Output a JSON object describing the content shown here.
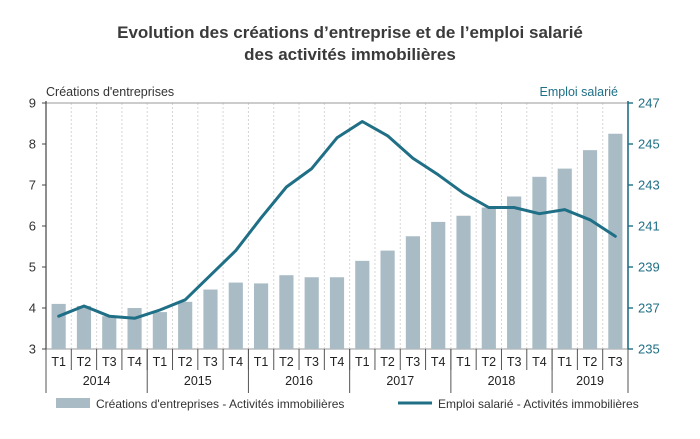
{
  "chart_data": {
    "type": "bar+line",
    "title_line1": "Evolution des créations d’entreprise et de l’emploi salarié",
    "title_line2": "des activités immobilières",
    "y_left_label": "Créations d'entreprises",
    "y_right_label": "Emploi salarié",
    "y_left_lim": [
      3,
      9
    ],
    "y_left_ticks": [
      "3",
      "4",
      "5",
      "6",
      "7",
      "8",
      "9"
    ],
    "y_right_lim": [
      235,
      247
    ],
    "y_right_ticks": [
      "235",
      "237",
      "239",
      "241",
      "243",
      "245",
      "247"
    ],
    "categories": [
      "T1",
      "T2",
      "T3",
      "T4",
      "T1",
      "T2",
      "T3",
      "T4",
      "T1",
      "T2",
      "T3",
      "T4",
      "T1",
      "T2",
      "T3",
      "T4",
      "T1",
      "T2",
      "T3",
      "T4",
      "T1",
      "T2",
      "T3"
    ],
    "years": [
      {
        "label": "2014",
        "count": 4
      },
      {
        "label": "2015",
        "count": 4
      },
      {
        "label": "2016",
        "count": 4
      },
      {
        "label": "2017",
        "count": 4
      },
      {
        "label": "2018",
        "count": 4
      },
      {
        "label": "2019",
        "count": 3
      }
    ],
    "series": [
      {
        "name": "Créations d'entreprises - Activités immobilières",
        "type": "bar",
        "axis": "left",
        "color": "#a9bcc6",
        "values": [
          4.1,
          4.05,
          3.8,
          4.0,
          3.9,
          4.15,
          4.45,
          4.62,
          4.6,
          4.8,
          4.75,
          4.75,
          5.15,
          5.4,
          5.75,
          6.1,
          6.25,
          6.45,
          6.72,
          7.2,
          7.4,
          7.85,
          8.25
        ]
      },
      {
        "name": "Emploi salarié - Activités immobilières",
        "type": "line",
        "axis": "right",
        "color": "#1f6f86",
        "values": [
          236.6,
          237.1,
          236.6,
          236.5,
          236.9,
          237.4,
          238.6,
          239.8,
          241.4,
          242.9,
          243.8,
          245.3,
          246.1,
          245.4,
          244.3,
          243.5,
          242.6,
          241.9,
          241.9,
          241.6,
          241.8,
          241.3,
          240.5
        ]
      }
    ],
    "grid": "vertical",
    "legend_position": "bottom"
  }
}
